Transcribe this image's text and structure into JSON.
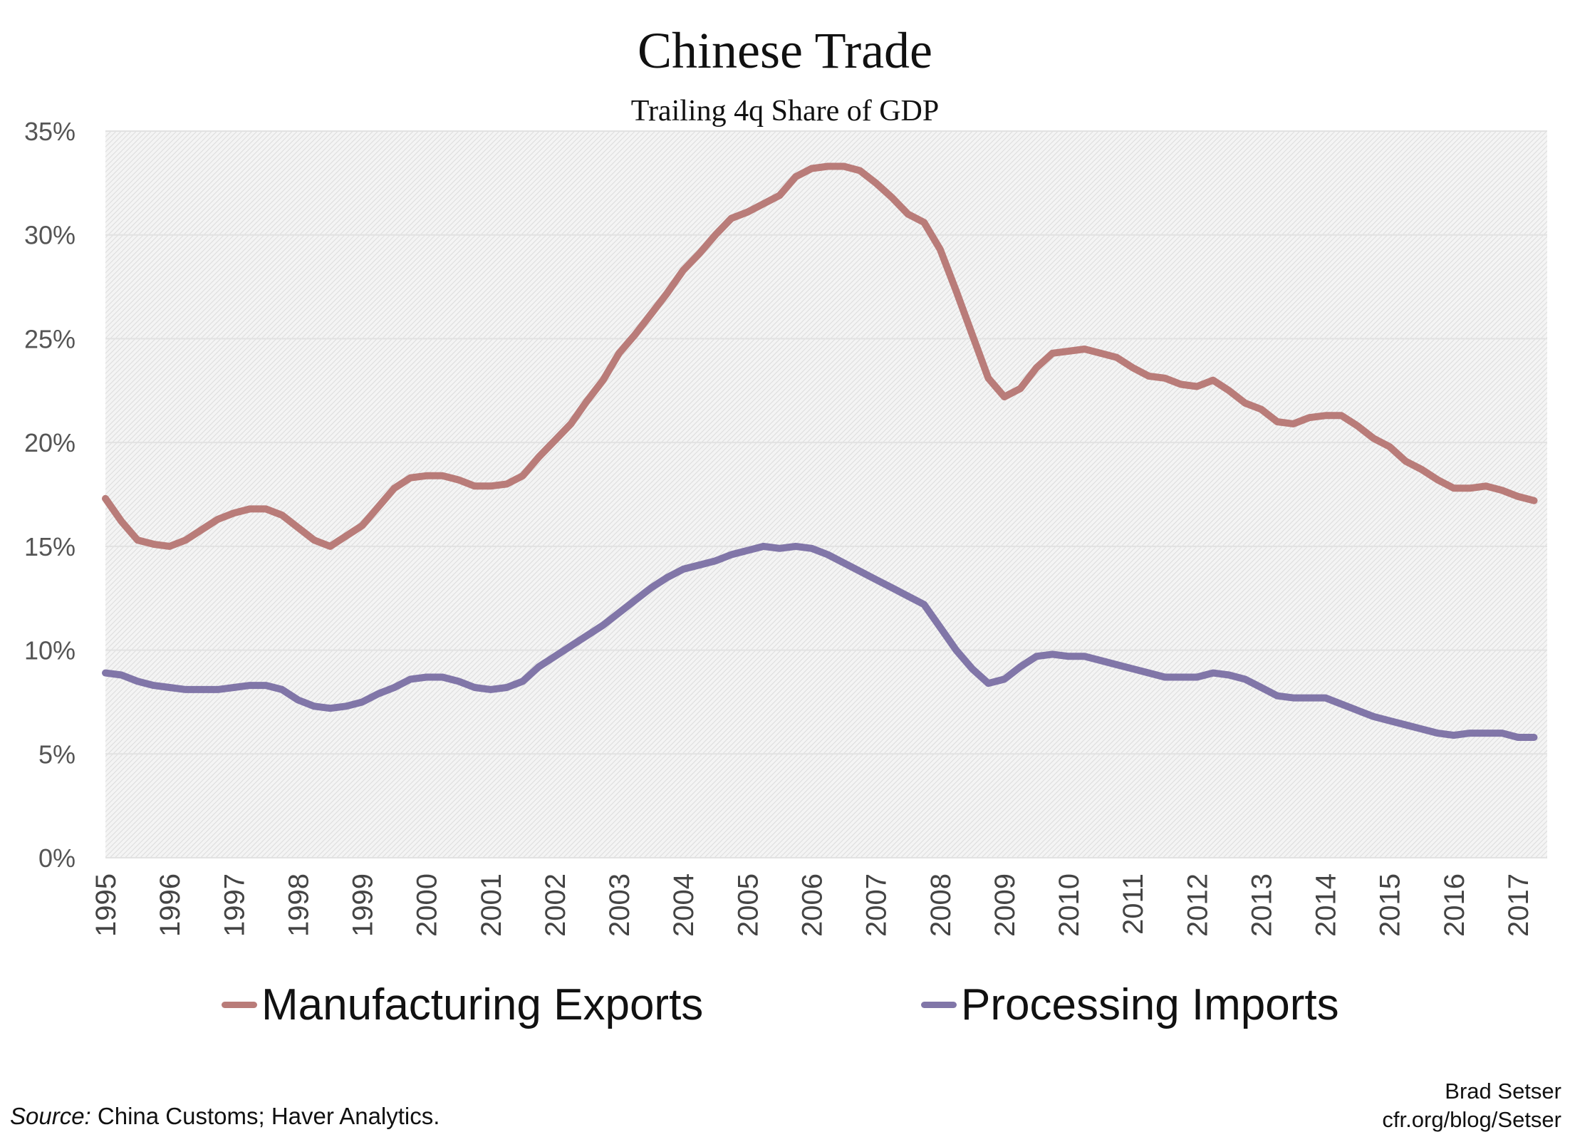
{
  "chart_data": {
    "type": "line",
    "title": "Chinese Trade",
    "subtitle": "Trailing 4q Share of GDP",
    "xlabel": "",
    "ylabel": "",
    "ylim": [
      0,
      35
    ],
    "yticks": [
      "0%",
      "5%",
      "10%",
      "15%",
      "20%",
      "25%",
      "30%",
      "35%"
    ],
    "xticks": [
      "1995",
      "1996",
      "1997",
      "1998",
      "1999",
      "2000",
      "2001",
      "2002",
      "2003",
      "2004",
      "2005",
      "2006",
      "2007",
      "2008",
      "2009",
      "2010",
      "2011",
      "2012",
      "2013",
      "2014",
      "2015",
      "2016",
      "2017"
    ],
    "x_start": "1995Q1",
    "frequency": "quarterly",
    "grid": true,
    "legend_position": "bottom",
    "series": [
      {
        "name": "Manufacturing Exports",
        "color": "#b97c79",
        "values": [
          17.3,
          16.2,
          15.3,
          15.1,
          15.0,
          15.3,
          15.8,
          16.3,
          16.6,
          16.8,
          16.8,
          16.5,
          15.9,
          15.3,
          15.0,
          15.5,
          16.0,
          16.9,
          17.8,
          18.3,
          18.4,
          18.4,
          18.2,
          17.9,
          17.9,
          18.0,
          18.4,
          19.3,
          20.1,
          20.9,
          22.0,
          23.0,
          24.3,
          25.2,
          26.2,
          27.2,
          28.3,
          29.1,
          30.0,
          30.8,
          31.1,
          31.5,
          31.9,
          32.8,
          33.2,
          33.3,
          33.3,
          33.1,
          32.5,
          31.8,
          31.0,
          30.6,
          29.3,
          27.3,
          25.2,
          23.1,
          22.2,
          22.6,
          23.6,
          24.3,
          24.4,
          24.5,
          24.3,
          24.1,
          23.6,
          23.2,
          23.1,
          22.8,
          22.7,
          23.0,
          22.5,
          21.9,
          21.6,
          21.0,
          20.9,
          21.2,
          21.3,
          21.3,
          20.8,
          20.2,
          19.8,
          19.1,
          18.7,
          18.2,
          17.8,
          17.8,
          17.9,
          17.7,
          17.4,
          17.2
        ]
      },
      {
        "name": "Processing Imports",
        "color": "#8176a8",
        "values": [
          8.9,
          8.8,
          8.5,
          8.3,
          8.2,
          8.1,
          8.1,
          8.1,
          8.2,
          8.3,
          8.3,
          8.1,
          7.6,
          7.3,
          7.2,
          7.3,
          7.5,
          7.9,
          8.2,
          8.6,
          8.7,
          8.7,
          8.5,
          8.2,
          8.1,
          8.2,
          8.5,
          9.2,
          9.7,
          10.2,
          10.7,
          11.2,
          11.8,
          12.4,
          13.0,
          13.5,
          13.9,
          14.1,
          14.3,
          14.6,
          14.8,
          15.0,
          14.9,
          15.0,
          14.9,
          14.6,
          14.2,
          13.8,
          13.4,
          13.0,
          12.6,
          12.2,
          11.1,
          10.0,
          9.1,
          8.4,
          8.6,
          9.2,
          9.7,
          9.8,
          9.7,
          9.7,
          9.5,
          9.3,
          9.1,
          8.9,
          8.7,
          8.7,
          8.7,
          8.9,
          8.8,
          8.6,
          8.2,
          7.8,
          7.7,
          7.7,
          7.7,
          7.4,
          7.1,
          6.8,
          6.6,
          6.4,
          6.2,
          6.0,
          5.9,
          6.0,
          6.0,
          6.0,
          5.8,
          5.8
        ]
      }
    ]
  },
  "footer": {
    "source_label": "Source:",
    "source_text": " China Customs; Haver Analytics.",
    "author": "Brad Setser",
    "url": "cfr.org/blog/Setser"
  }
}
